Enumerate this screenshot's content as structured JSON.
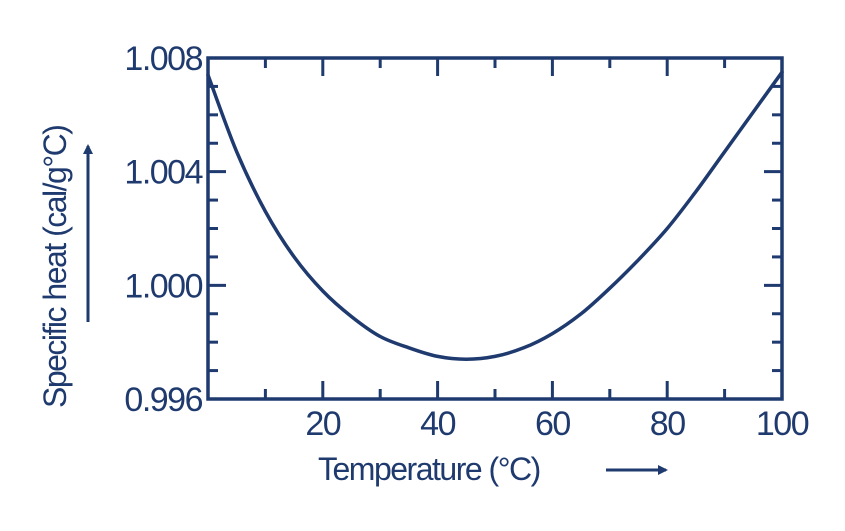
{
  "chart_data": {
    "type": "line",
    "title": "",
    "xlabel": "Temperature (°C)",
    "ylabel": "Specific heat (cal/g°C)",
    "xlim": [
      0,
      100
    ],
    "ylim": [
      0.996,
      1.008
    ],
    "x_ticks": [
      20,
      40,
      60,
      80,
      100
    ],
    "x_tick_labels": [
      "20",
      "40",
      "60",
      "80",
      "100"
    ],
    "y_ticks": [
      0.996,
      1.0,
      1.004,
      1.008
    ],
    "y_tick_labels": [
      "0.996",
      "1.000",
      "1.004",
      "1.008"
    ],
    "grid": false,
    "series": [
      {
        "x": [
          0,
          5,
          10,
          15,
          20,
          25,
          30,
          35,
          40,
          45,
          50,
          55,
          60,
          65,
          70,
          75,
          80,
          85,
          90,
          95,
          100
        ],
        "y": [
          1.0074,
          1.0047,
          1.0026,
          1.001,
          0.9998,
          0.9989,
          0.9982,
          0.9978,
          0.9975,
          0.9974,
          0.9975,
          0.9978,
          0.9983,
          0.999,
          0.9999,
          1.0009,
          1.002,
          1.0033,
          1.0047,
          1.0061,
          1.0075
        ]
      }
    ],
    "colors": {
      "ink": "#1f3a6e"
    }
  }
}
